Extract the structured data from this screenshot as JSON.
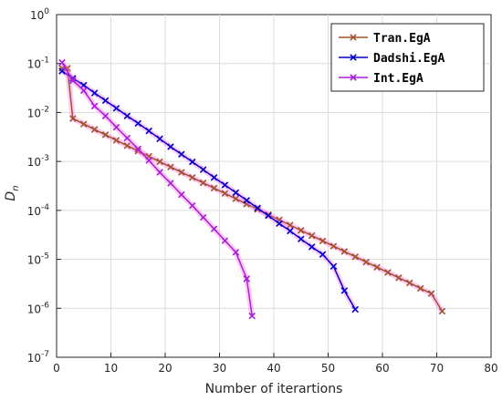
{
  "chart_data": {
    "type": "line",
    "xlabel": "Number of iterartions",
    "ylabel": "D",
    "ylabel_sub": "n",
    "xlim": [
      0,
      80
    ],
    "ylim_exp": [
      -7,
      0
    ],
    "y_scale": "log",
    "grid": true,
    "legend_position": "top-right",
    "x_ticks": [
      0,
      10,
      20,
      30,
      40,
      50,
      60,
      70,
      80
    ],
    "y_tick_exponents": [
      0,
      -1,
      -2,
      -3,
      -4,
      -5,
      -6,
      -7
    ],
    "series": [
      {
        "name": "Tran.EgA",
        "color": "#a0522d",
        "marker": "x",
        "x": [
          1,
          2,
          3,
          5,
          7,
          9,
          11,
          13,
          15,
          17,
          19,
          21,
          23,
          25,
          27,
          29,
          31,
          33,
          35,
          37,
          39,
          41,
          43,
          45,
          47,
          49,
          51,
          53,
          55,
          57,
          59,
          61,
          63,
          65,
          67,
          69,
          71
        ],
        "y": [
          0.08,
          0.08,
          0.0075,
          0.0058,
          0.0045,
          0.0035,
          0.0027,
          0.0021,
          0.00163,
          0.00127,
          0.00099,
          0.00077,
          0.0006,
          0.00047,
          0.000365,
          0.000285,
          0.000222,
          0.000173,
          0.000135,
          0.000105,
          8.2e-05,
          6.4e-05,
          5e-05,
          3.9e-05,
          3.05e-05,
          2.38e-05,
          1.86e-05,
          1.45e-05,
          1.13e-05,
          8.8e-06,
          6.9e-06,
          5.4e-06,
          4.2e-06,
          3.3e-06,
          2.55e-06,
          2e-06,
          8.7e-07
        ]
      },
      {
        "name": "Dadshi.EgA",
        "color": "#0000cc",
        "marker": "x",
        "x": [
          1,
          3,
          5,
          7,
          9,
          11,
          13,
          15,
          17,
          19,
          21,
          23,
          25,
          27,
          29,
          31,
          33,
          35,
          37,
          39,
          41,
          43,
          45,
          47,
          49,
          51,
          53,
          55
        ],
        "y": [
          0.07,
          0.05,
          0.036,
          0.025,
          0.0175,
          0.0122,
          0.0085,
          0.006,
          0.0042,
          0.0029,
          0.002,
          0.0014,
          0.00098,
          0.00068,
          0.00047,
          0.00033,
          0.00023,
          0.00016,
          0.000112,
          7.8e-05,
          5.4e-05,
          3.8e-05,
          2.6e-05,
          1.8e-05,
          1.26e-05,
          7.2e-06,
          2.3e-06,
          9.5e-07
        ]
      },
      {
        "name": "Int.EgA",
        "color": "#a81fd8",
        "marker": "x",
        "x": [
          1,
          3,
          5,
          7,
          9,
          11,
          13,
          15,
          17,
          19,
          21,
          23,
          25,
          27,
          29,
          31,
          33,
          35,
          36
        ],
        "y": [
          0.105,
          0.045,
          0.028,
          0.0135,
          0.0085,
          0.005,
          0.003,
          0.0018,
          0.00105,
          0.0006,
          0.00036,
          0.00021,
          0.000125,
          7.2e-05,
          4.2e-05,
          2.4e-05,
          1.4e-05,
          4e-06,
          7e-07
        ]
      }
    ]
  }
}
